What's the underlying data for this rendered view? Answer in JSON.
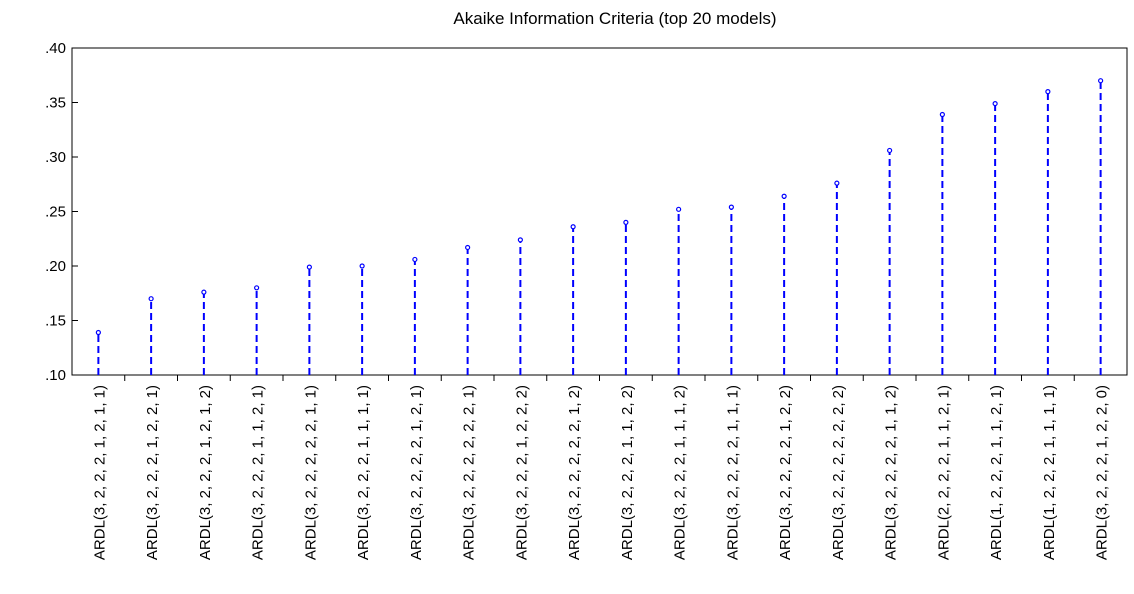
{
  "chart_data": {
    "type": "stem",
    "title": "Akaike Information Criteria (top 20 models)",
    "categories": [
      "ARDL(3, 2, 2, 2, 1, 2, 1, 1)",
      "ARDL(3, 2, 2, 2, 1, 2, 2, 1)",
      "ARDL(3, 2, 2, 2, 1, 2, 1, 2)",
      "ARDL(3, 2, 2, 2, 1, 1, 2, 1)",
      "ARDL(3, 2, 2, 2, 2, 2, 1, 1)",
      "ARDL(3, 2, 2, 2, 1, 1, 1, 1)",
      "ARDL(3, 2, 2, 2, 2, 1, 2, 1)",
      "ARDL(3, 2, 2, 2, 2, 2, 2, 1)",
      "ARDL(3, 2, 2, 2, 1, 2, 2, 2)",
      "ARDL(3, 2, 2, 2, 2, 2, 1, 2)",
      "ARDL(3, 2, 2, 2, 1, 1, 2, 2)",
      "ARDL(3, 2, 2, 2, 1, 1, 1, 2)",
      "ARDL(3, 2, 2, 2, 2, 1, 1, 1)",
      "ARDL(3, 2, 2, 2, 2, 1, 2, 2)",
      "ARDL(3, 2, 2, 2, 2, 2, 2, 2)",
      "ARDL(3, 2, 2, 2, 2, 1, 1, 2)",
      "ARDL(2, 2, 2, 2, 1, 1, 2, 1)",
      "ARDL(1, 2, 2, 2, 1, 1, 2, 1)",
      "ARDL(1, 2, 2, 2, 1, 1, 1, 1)",
      "ARDL(3, 2, 2, 2, 1, 2, 2, 0)"
    ],
    "values": [
      0.139,
      0.17,
      0.176,
      0.18,
      0.199,
      0.2,
      0.206,
      0.217,
      0.224,
      0.236,
      0.24,
      0.252,
      0.254,
      0.264,
      0.276,
      0.306,
      0.339,
      0.349,
      0.36,
      0.37
    ],
    "color": "#0000ff",
    "ylim": [
      0.1,
      0.4
    ],
    "yticks": [
      {
        "value": 0.1,
        "label": ".10"
      },
      {
        "value": 0.15,
        "label": ".15"
      },
      {
        "value": 0.2,
        "label": ".20"
      },
      {
        "value": 0.25,
        "label": ".25"
      },
      {
        "value": 0.3,
        "label": ".30"
      },
      {
        "value": 0.35,
        "label": ".35"
      },
      {
        "value": 0.4,
        "label": ".40"
      }
    ]
  }
}
